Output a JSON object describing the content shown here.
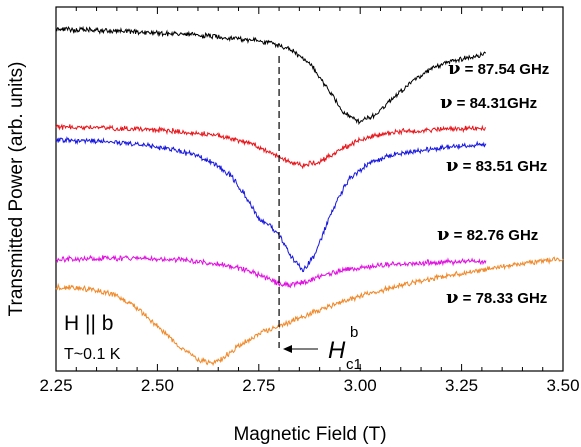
{
  "chart_data": {
    "type": "line",
    "xlabel": "Magnetic Field (T)",
    "ylabel": "Transmitted Power (arb. units)",
    "xlim": [
      2.25,
      3.5
    ],
    "ylim": [
      0,
      10
    ],
    "x_ticks": [
      "2.25",
      "2.50",
      "2.75",
      "3.00",
      "3.25",
      "3.50"
    ],
    "y_ticks_labeled": false,
    "grid": false,
    "legend": "labels beside each curve on the right",
    "series": [
      {
        "name": "87.54 GHz",
        "label_prefix": "ν",
        "label_text": " = 87.54 GHz",
        "color": "#000000",
        "x": [
          2.25,
          2.35,
          2.45,
          2.55,
          2.65,
          2.72,
          2.78,
          2.83,
          2.88,
          2.92,
          2.96,
          3.0,
          3.04,
          3.08,
          3.13,
          3.18,
          3.23,
          3.31
        ],
        "y": [
          9.62,
          9.58,
          9.54,
          9.48,
          9.4,
          9.32,
          9.22,
          9.02,
          8.55,
          7.9,
          7.18,
          6.92,
          7.15,
          7.62,
          8.12,
          8.48,
          8.72,
          8.88
        ]
      },
      {
        "name": "84.31GHz",
        "label_prefix": "ν",
        "label_text": " = 84.31GHz",
        "color": "#e8161b",
        "x": [
          2.25,
          2.35,
          2.45,
          2.55,
          2.65,
          2.72,
          2.78,
          2.82,
          2.86,
          2.9,
          2.95,
          3.0,
          3.05,
          3.1,
          3.2,
          3.31
        ],
        "y": [
          6.78,
          6.76,
          6.72,
          6.65,
          6.52,
          6.34,
          6.02,
          5.78,
          5.66,
          5.76,
          6.12,
          6.4,
          6.56,
          6.64,
          6.71,
          6.73
        ]
      },
      {
        "name": "83.51 GHz",
        "label_prefix": "ν",
        "label_text": " = 83.51 GHz",
        "color": "#1818e0",
        "x": [
          2.25,
          2.35,
          2.45,
          2.55,
          2.62,
          2.68,
          2.72,
          2.75,
          2.78,
          2.8,
          2.83,
          2.86,
          2.89,
          2.93,
          2.97,
          3.02,
          3.08,
          3.14,
          3.2,
          3.26,
          3.31
        ],
        "y": [
          6.4,
          6.36,
          6.28,
          6.1,
          5.85,
          5.38,
          4.72,
          4.1,
          3.88,
          3.62,
          3.0,
          2.6,
          3.1,
          4.32,
          5.22,
          5.72,
          5.96,
          6.08,
          6.18,
          6.24,
          6.26
        ]
      },
      {
        "name": "82.76 GHz",
        "label_prefix": "ν",
        "label_text": " = 82.76 GHz",
        "color": "#e010e0",
        "x": [
          2.25,
          2.35,
          2.45,
          2.55,
          2.65,
          2.72,
          2.77,
          2.81,
          2.85,
          2.9,
          2.96,
          3.05,
          3.15,
          3.25,
          3.31
        ],
        "y": [
          2.92,
          2.96,
          2.96,
          2.92,
          2.8,
          2.62,
          2.38,
          2.16,
          2.22,
          2.42,
          2.62,
          2.76,
          2.82,
          2.86,
          2.88
        ]
      },
      {
        "name": "78.33 GHz",
        "label_prefix": "ν",
        "label_text": " = 78.33 GHz",
        "color": "#f0892a",
        "x": [
          2.25,
          2.3,
          2.35,
          2.4,
          2.45,
          2.5,
          2.55,
          2.6,
          2.63,
          2.66,
          2.7,
          2.75,
          2.8,
          2.85,
          2.9,
          3.0,
          3.1,
          3.2,
          3.3,
          3.4,
          3.5
        ],
        "y": [
          2.1,
          2.1,
          2.02,
          1.86,
          1.52,
          0.98,
          0.42,
          0.02,
          -0.08,
          0.04,
          0.4,
          0.76,
          0.98,
          1.22,
          1.46,
          1.86,
          2.18,
          2.42,
          2.62,
          2.8,
          2.94
        ]
      }
    ],
    "reference_line": {
      "x": 2.8,
      "style": "dashed"
    },
    "annotations": {
      "orientation": "H || b",
      "temperature": "T~0.1 K",
      "field_main": "H",
      "field_sup": "b",
      "field_sub": "c1"
    }
  }
}
